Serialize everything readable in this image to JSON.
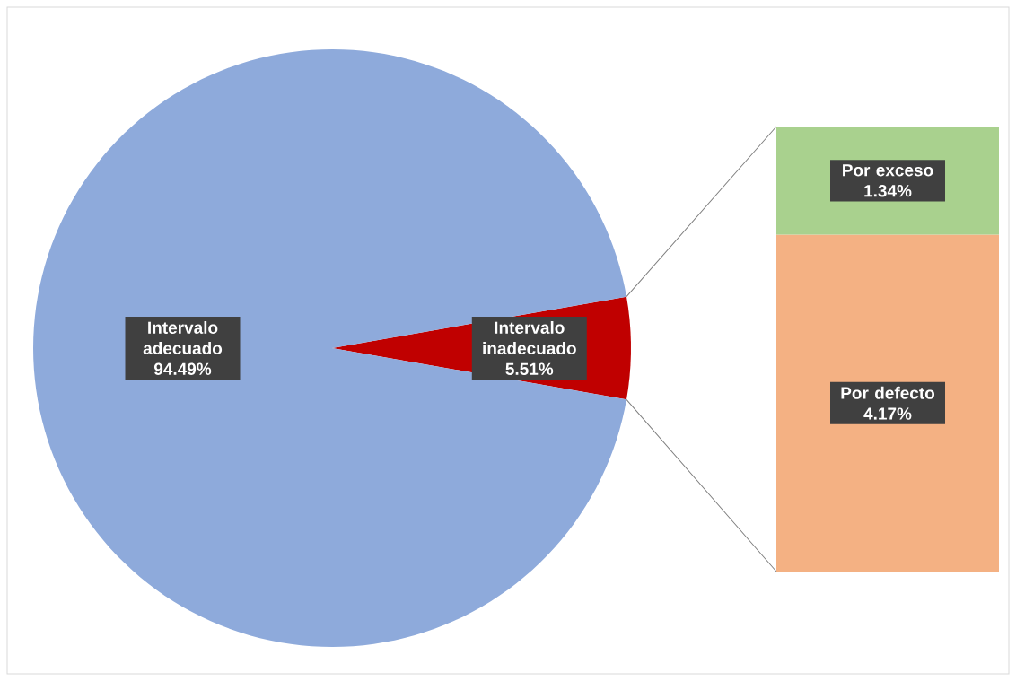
{
  "chart_data": [
    {
      "type": "pie",
      "categories": [
        "Intervalo adecuado",
        "Intervalo inadecuado"
      ],
      "values": [
        94.49,
        5.51
      ],
      "colors": [
        "#8eaadb",
        "#c00000"
      ],
      "value_labels": [
        "94.49%",
        "5.51%"
      ]
    },
    {
      "type": "bar",
      "stacked": true,
      "categories": [
        null
      ],
      "series": [
        {
          "name": "Por defecto",
          "color": "#f4b183",
          "values": [
            4.17
          ],
          "value_labels": [
            "4.17%"
          ]
        },
        {
          "name": "Por exceso",
          "color": "#a9d18e",
          "values": [
            1.34
          ],
          "value_labels": [
            "1.34%"
          ]
        }
      ]
    }
  ]
}
